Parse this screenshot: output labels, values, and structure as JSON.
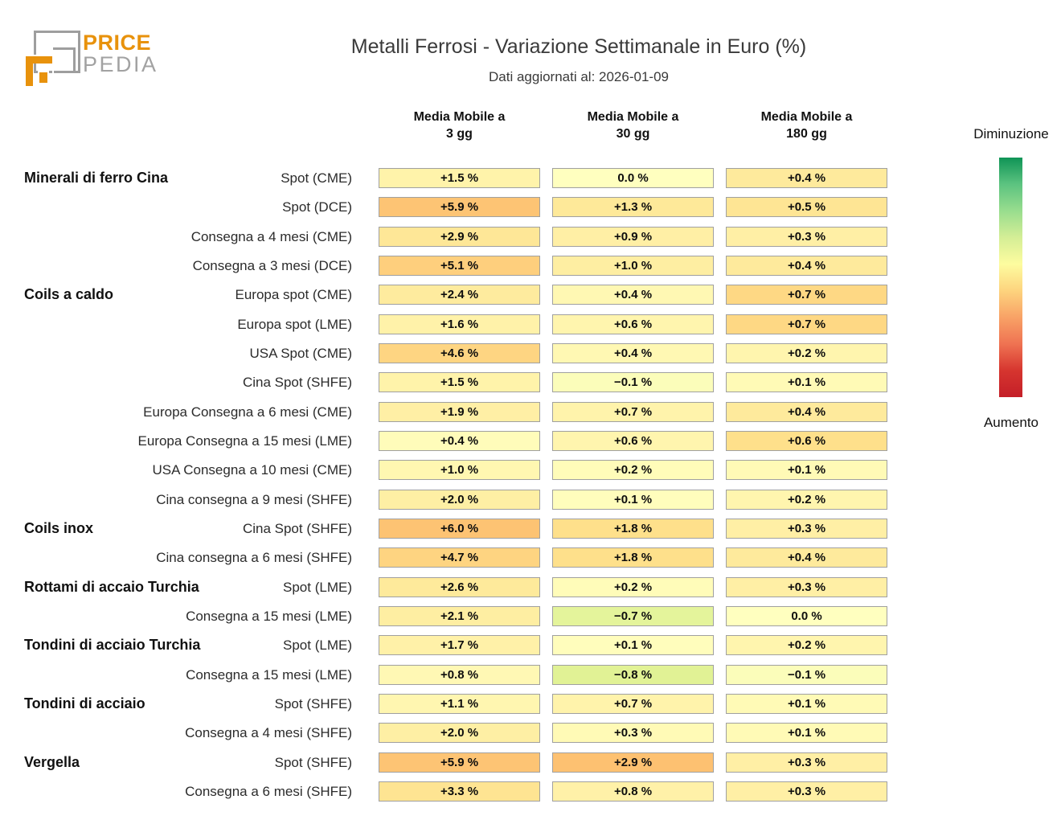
{
  "colors": {
    "brand_orange": "#e8920c",
    "brand_gray": "#9e9e9e",
    "cell_border": "#a0a0a0",
    "legend_gradient": [
      "#0f9456",
      "#5cc380",
      "#98dd8e",
      "#d4ee96",
      "#fdfc9f",
      "#fdd47e",
      "#f8a266",
      "#ef7352",
      "#d6352f",
      "#c41f28"
    ]
  },
  "logo": {
    "brand_top": "PRICE",
    "brand_bottom": "PEDIA"
  },
  "header": {
    "title": "Metalli Ferrosi - Variazione Settimanale in Euro (%)",
    "subtitle": "Dati aggiornati al: 2026-01-09"
  },
  "columns": [
    {
      "line1": "Media Mobile a",
      "line2": "3 gg"
    },
    {
      "line1": "Media Mobile a",
      "line2": "30 gg"
    },
    {
      "line1": "Media Mobile a",
      "line2": "180 gg"
    }
  ],
  "legend": {
    "top_label": "Diminuzione",
    "bottom_label": "Aumento"
  },
  "chart_data": {
    "type": "heatmap",
    "title": "Metalli Ferrosi - Variazione Settimanale in Euro (%)",
    "subtitle": "Dati aggiornati al: 2026-01-09",
    "columns": [
      "Media Mobile a 3 gg",
      "Media Mobile a 30 gg",
      "Media Mobile a 180 gg"
    ],
    "unit": "%",
    "colormap": "green=Diminuzione, yellow=0, red=Aumento, normalized per column",
    "rows": [
      {
        "category": "Minerali di ferro Cina",
        "label": "Spot (CME)",
        "values": [
          1.5,
          0.0,
          0.4
        ],
        "display": [
          "+1.5 %",
          "0.0 %",
          "+0.4 %"
        ]
      },
      {
        "category": null,
        "label": "Spot (DCE)",
        "values": [
          5.9,
          1.3,
          0.5
        ],
        "display": [
          "+5.9 %",
          "+1.3 %",
          "+0.5 %"
        ]
      },
      {
        "category": null,
        "label": "Consegna a 4 mesi (CME)",
        "values": [
          2.9,
          0.9,
          0.3
        ],
        "display": [
          "+2.9 %",
          "+0.9 %",
          "+0.3 %"
        ]
      },
      {
        "category": null,
        "label": "Consegna a 3 mesi (DCE)",
        "values": [
          5.1,
          1.0,
          0.4
        ],
        "display": [
          "+5.1 %",
          "+1.0 %",
          "+0.4 %"
        ]
      },
      {
        "category": "Coils a caldo",
        "label": "Europa spot (CME)",
        "values": [
          2.4,
          0.4,
          0.7
        ],
        "display": [
          "+2.4 %",
          "+0.4 %",
          "+0.7 %"
        ]
      },
      {
        "category": null,
        "label": "Europa spot (LME)",
        "values": [
          1.6,
          0.6,
          0.7
        ],
        "display": [
          "+1.6 %",
          "+0.6 %",
          "+0.7 %"
        ]
      },
      {
        "category": null,
        "label": "USA Spot (CME)",
        "values": [
          4.6,
          0.4,
          0.2
        ],
        "display": [
          "+4.6 %",
          "+0.4 %",
          "+0.2 %"
        ]
      },
      {
        "category": null,
        "label": "Cina Spot (SHFE)",
        "values": [
          1.5,
          -0.1,
          0.1
        ],
        "display": [
          "+1.5 %",
          "−0.1 %",
          "+0.1 %"
        ]
      },
      {
        "category": null,
        "label": "Europa Consegna a 6 mesi (CME)",
        "values": [
          1.9,
          0.7,
          0.4
        ],
        "display": [
          "+1.9 %",
          "+0.7 %",
          "+0.4 %"
        ]
      },
      {
        "category": null,
        "label": "Europa Consegna a 15 mesi (LME)",
        "values": [
          0.4,
          0.6,
          0.6
        ],
        "display": [
          "+0.4 %",
          "+0.6 %",
          "+0.6 %"
        ]
      },
      {
        "category": null,
        "label": "USA Consegna a 10 mesi (CME)",
        "values": [
          1.0,
          0.2,
          0.1
        ],
        "display": [
          "+1.0 %",
          "+0.2 %",
          "+0.1 %"
        ]
      },
      {
        "category": null,
        "label": "Cina consegna a 9 mesi (SHFE)",
        "values": [
          2.0,
          0.1,
          0.2
        ],
        "display": [
          "+2.0 %",
          "+0.1 %",
          "+0.2 %"
        ]
      },
      {
        "category": "Coils inox",
        "label": "Cina Spot (SHFE)",
        "values": [
          6.0,
          1.8,
          0.3
        ],
        "display": [
          "+6.0 %",
          "+1.8 %",
          "+0.3 %"
        ]
      },
      {
        "category": null,
        "label": "Cina consegna a 6 mesi (SHFE)",
        "values": [
          4.7,
          1.8,
          0.4
        ],
        "display": [
          "+4.7 %",
          "+1.8 %",
          "+0.4 %"
        ]
      },
      {
        "category": "Rottami di accaio Turchia",
        "label": "Spot (LME)",
        "values": [
          2.6,
          0.2,
          0.3
        ],
        "display": [
          "+2.6 %",
          "+0.2 %",
          "+0.3 %"
        ]
      },
      {
        "category": null,
        "label": "Consegna a 15 mesi (LME)",
        "values": [
          2.1,
          -0.7,
          0.0
        ],
        "display": [
          "+2.1 %",
          "−0.7 %",
          "0.0 %"
        ]
      },
      {
        "category": "Tondini di acciaio Turchia",
        "label": "Spot (LME)",
        "values": [
          1.7,
          0.1,
          0.2
        ],
        "display": [
          "+1.7 %",
          "+0.1 %",
          "+0.2 %"
        ]
      },
      {
        "category": null,
        "label": "Consegna a 15 mesi (LME)",
        "values": [
          0.8,
          -0.8,
          -0.1
        ],
        "display": [
          "+0.8 %",
          "−0.8 %",
          "−0.1 %"
        ]
      },
      {
        "category": "Tondini di acciaio",
        "label": "Spot (SHFE)",
        "values": [
          1.1,
          0.7,
          0.1
        ],
        "display": [
          "+1.1 %",
          "+0.7 %",
          "+0.1 %"
        ]
      },
      {
        "category": null,
        "label": "Consegna a 4 mesi (SHFE)",
        "values": [
          2.0,
          0.3,
          0.1
        ],
        "display": [
          "+2.0 %",
          "+0.3 %",
          "+0.1 %"
        ]
      },
      {
        "category": "Vergella",
        "label": "Spot (SHFE)",
        "values": [
          5.9,
          2.9,
          0.3
        ],
        "display": [
          "+5.9 %",
          "+2.9 %",
          "+0.3 %"
        ]
      },
      {
        "category": null,
        "label": "Consegna a 6 mesi (SHFE)",
        "values": [
          3.3,
          0.8,
          0.3
        ],
        "display": [
          "+3.3 %",
          "+0.8 %",
          "+0.3 %"
        ]
      }
    ],
    "legend": {
      "top_label": "Diminuzione",
      "bottom_label": "Aumento"
    }
  }
}
